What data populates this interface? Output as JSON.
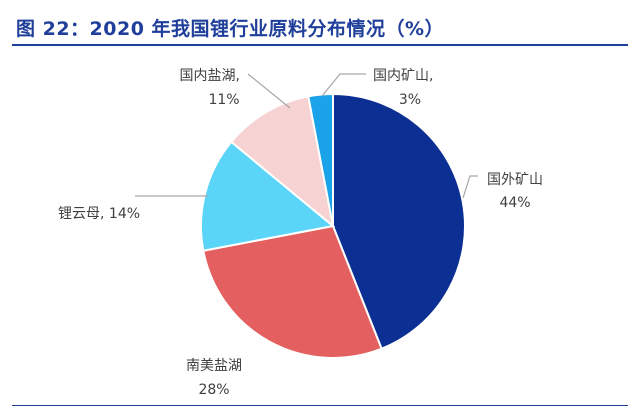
{
  "title": "图 22：2020 年我国锂行业原料分布情况（%）",
  "chart_data": {
    "type": "pie",
    "title": "图 22：2020 年我国锂行业原料分布情况（%）",
    "slices": [
      {
        "label": "国外矿山",
        "value": 44,
        "value_label": "44%",
        "color": "#0b2f93"
      },
      {
        "label": "南美盐湖",
        "value": 28,
        "value_label": "28%",
        "color": "#e45f5f"
      },
      {
        "label": "锂云母",
        "value": 14,
        "value_label": "14%",
        "color": "#5ad4f7"
      },
      {
        "label": "国内盐湖",
        "value": 11,
        "value_label": "11%",
        "color": "#f7d2d2"
      },
      {
        "label": "国内矿山",
        "value": 3,
        "value_label": "3%",
        "color": "#1aa3e8"
      }
    ],
    "label_format": "category + percent",
    "leader_lines": true,
    "leader_line_color": "#a6a6a6",
    "slice_border_color": "#ffffff",
    "rule_color": "#1f3f9a"
  }
}
